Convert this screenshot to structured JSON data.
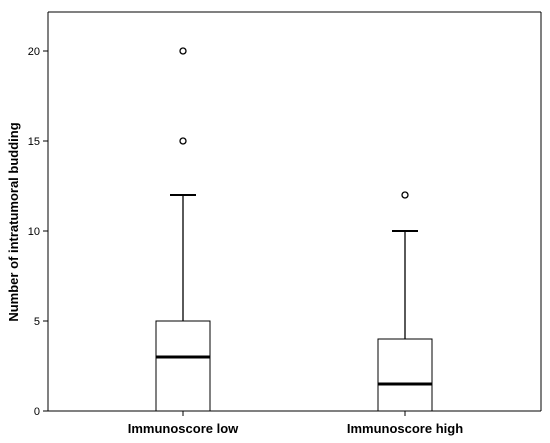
{
  "chart_data": {
    "type": "box",
    "title": "",
    "xlabel": "",
    "ylabel": "Number of intratumoral budding",
    "ylim": [
      0,
      22
    ],
    "yticks": [
      0,
      5,
      10,
      15,
      20
    ],
    "grid": false,
    "legend": "none",
    "colors": {
      "box_fill": "#ffffff",
      "stroke": "#000000"
    },
    "categories": [
      "Immunoscore low",
      "Immunoscore high"
    ],
    "boxes": [
      {
        "category": "Immunoscore low",
        "whisker_low": 0,
        "q1": 0,
        "median": 3,
        "q3": 5,
        "whisker_high": 12,
        "outliers": [
          15,
          20
        ]
      },
      {
        "category": "Immunoscore high",
        "whisker_low": 0,
        "q1": 0,
        "median": 1.5,
        "q3": 4,
        "whisker_high": 10,
        "outliers": [
          12
        ]
      }
    ]
  }
}
